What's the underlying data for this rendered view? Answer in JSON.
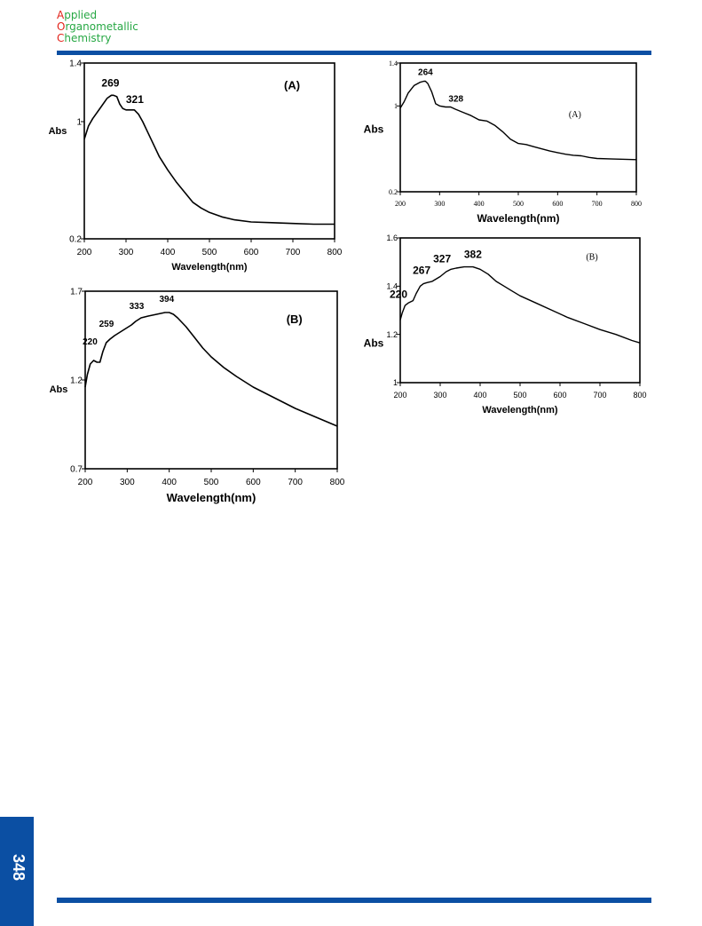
{
  "header": {
    "journal_lines": [
      {
        "initial": "A",
        "rest": "pplied"
      },
      {
        "initial": "O",
        "rest": "rganometallic"
      },
      {
        "initial": "C",
        "rest": "hemistry"
      }
    ],
    "colors": {
      "rule": "#0b4fa3",
      "initial": "#e2231a",
      "rest": "#27a844"
    }
  },
  "footer": {
    "page_number": "348"
  },
  "chart_data": [
    {
      "type": "line",
      "panel": "left-top",
      "title": "(A)",
      "xlabel": "Wavelength(nm)",
      "ylabel": "Abs",
      "xlim": [
        200,
        800
      ],
      "ylim": [
        0.2,
        1.4
      ],
      "xticks": [
        200,
        300,
        400,
        500,
        600,
        700,
        800
      ],
      "yticks": [
        0.2,
        1,
        1.4
      ],
      "ytick_labels": [
        "0.2",
        "1",
        "1.4"
      ],
      "series": [
        {
          "x": [
            200,
            210,
            220,
            240,
            255,
            265,
            270,
            278,
            285,
            292,
            300,
            310,
            320,
            330,
            340,
            360,
            380,
            400,
            420,
            440,
            460,
            480,
            500,
            530,
            560,
            600,
            650,
            700,
            750,
            800
          ],
          "y": [
            0.88,
            0.97,
            1.02,
            1.1,
            1.16,
            1.18,
            1.18,
            1.17,
            1.12,
            1.09,
            1.08,
            1.08,
            1.08,
            1.05,
            1.0,
            0.88,
            0.76,
            0.67,
            0.59,
            0.52,
            0.45,
            0.41,
            0.38,
            0.35,
            0.33,
            0.315,
            0.31,
            0.305,
            0.3,
            0.3
          ]
        }
      ],
      "annotations": [
        {
          "text": "269",
          "x": 269,
          "y": 1.18
        },
        {
          "text": "321",
          "x": 321,
          "y": 1.08
        }
      ]
    },
    {
      "type": "line",
      "panel": "right-top",
      "title": "(A)",
      "xlabel": "Wavelength(nm)",
      "ylabel": "Abs",
      "xlim": [
        200,
        800
      ],
      "ylim": [
        0.2,
        1.4
      ],
      "xticks": [
        200,
        300,
        400,
        500,
        600,
        700,
        800
      ],
      "yticks": [
        0.2,
        1,
        1.4
      ],
      "ytick_labels": [
        "0.2",
        "1",
        "1.4"
      ],
      "series": [
        {
          "x": [
            200,
            210,
            220,
            235,
            250,
            260,
            264,
            270,
            280,
            290,
            300,
            315,
            328,
            340,
            360,
            380,
            400,
            420,
            440,
            460,
            480,
            500,
            520,
            540,
            560,
            580,
            600,
            620,
            640,
            660,
            680,
            700,
            740,
            800
          ],
          "y": [
            0.98,
            1.04,
            1.12,
            1.19,
            1.22,
            1.23,
            1.23,
            1.21,
            1.13,
            1.02,
            1.0,
            0.99,
            0.99,
            0.97,
            0.94,
            0.91,
            0.87,
            0.86,
            0.82,
            0.76,
            0.69,
            0.65,
            0.64,
            0.62,
            0.6,
            0.58,
            0.565,
            0.55,
            0.54,
            0.535,
            0.52,
            0.51,
            0.505,
            0.5
          ]
        }
      ],
      "annotations": [
        {
          "text": "264",
          "x": 264,
          "y": 1.23
        },
        {
          "text": "328",
          "x": 328,
          "y": 0.99
        }
      ]
    },
    {
      "type": "line",
      "panel": "left-bottom",
      "title": "(B)",
      "xlabel": "Wavelength(nm)",
      "ylabel": "Abs",
      "xlim": [
        200,
        800
      ],
      "ylim": [
        0.7,
        1.7
      ],
      "xticks": [
        200,
        300,
        400,
        500,
        600,
        700,
        800
      ],
      "yticks": [
        0.7,
        1.2,
        1.7
      ],
      "ytick_labels": [
        "0.7",
        "1.2",
        "1.7"
      ],
      "series": [
        {
          "x": [
            200,
            205,
            212,
            220,
            228,
            235,
            242,
            250,
            259,
            270,
            290,
            310,
            320,
            333,
            350,
            370,
            390,
            400,
            410,
            420,
            440,
            460,
            480,
            500,
            530,
            560,
            600,
            650,
            700,
            750,
            800
          ],
          "y": [
            1.16,
            1.23,
            1.29,
            1.31,
            1.3,
            1.3,
            1.36,
            1.41,
            1.43,
            1.45,
            1.48,
            1.51,
            1.53,
            1.55,
            1.56,
            1.57,
            1.58,
            1.58,
            1.57,
            1.55,
            1.5,
            1.44,
            1.38,
            1.33,
            1.27,
            1.22,
            1.16,
            1.1,
            1.04,
            0.99,
            0.94
          ]
        }
      ],
      "annotations": [
        {
          "text": "220",
          "x": 220,
          "y": 1.31
        },
        {
          "text": "259",
          "x": 259,
          "y": 1.43
        },
        {
          "text": "333",
          "x": 333,
          "y": 1.55
        },
        {
          "text": "394",
          "x": 394,
          "y": 1.58
        }
      ]
    },
    {
      "type": "line",
      "panel": "right-bottom",
      "title": "(B)",
      "xlabel": "Wavelength(nm)",
      "ylabel": "Abs",
      "xlim": [
        200,
        800
      ],
      "ylim": [
        1,
        1.6
      ],
      "xticks": [
        200,
        300,
        400,
        500,
        600,
        700,
        800
      ],
      "yticks": [
        1,
        1.2,
        1.4,
        1.6
      ],
      "ytick_labels": [
        "1",
        "1.2",
        "1.4",
        "1.6"
      ],
      "series": [
        {
          "x": [
            200,
            205,
            212,
            220,
            232,
            240,
            250,
            258,
            267,
            280,
            300,
            315,
            327,
            340,
            360,
            382,
            400,
            420,
            440,
            460,
            480,
            500,
            540,
            580,
            620,
            660,
            700,
            740,
            780,
            800
          ],
          "y": [
            1.26,
            1.29,
            1.32,
            1.33,
            1.34,
            1.37,
            1.4,
            1.41,
            1.415,
            1.42,
            1.44,
            1.46,
            1.47,
            1.475,
            1.48,
            1.48,
            1.47,
            1.45,
            1.42,
            1.4,
            1.38,
            1.36,
            1.33,
            1.3,
            1.27,
            1.245,
            1.22,
            1.2,
            1.175,
            1.165
          ]
        }
      ],
      "annotations": [
        {
          "text": "220",
          "x": 220,
          "y": 1.33
        },
        {
          "text": "267",
          "x": 267,
          "y": 1.415
        },
        {
          "text": "327",
          "x": 327,
          "y": 1.47
        },
        {
          "text": "382",
          "x": 382,
          "y": 1.48
        }
      ]
    }
  ]
}
